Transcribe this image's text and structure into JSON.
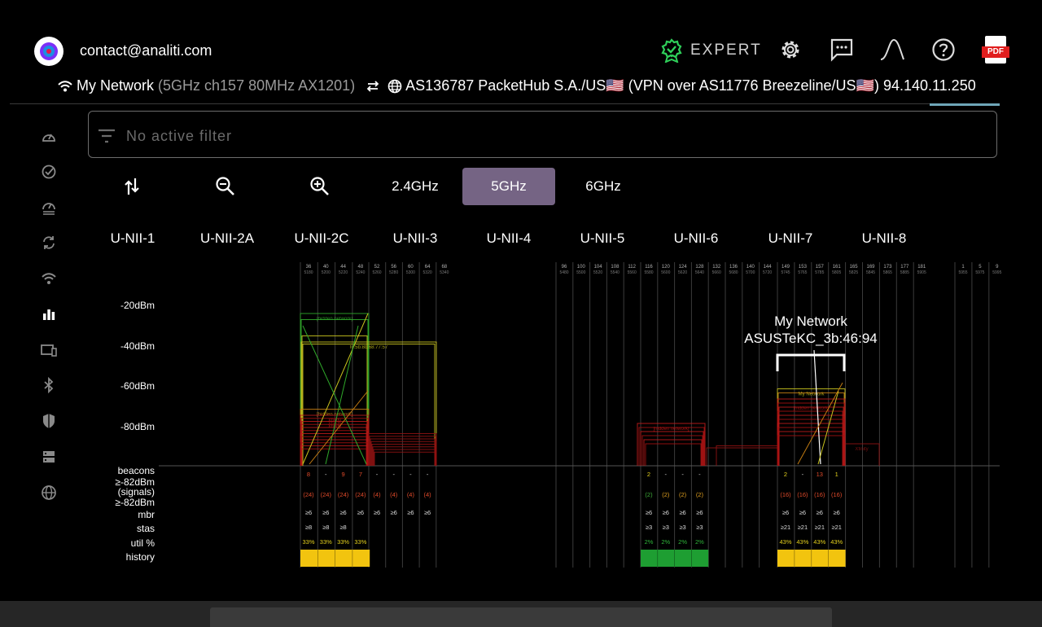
{
  "header": {
    "account_email": "contact@analiti.com",
    "expert_label": "EXPERT",
    "network_name": "My Network",
    "network_details": "(5GHz ch157 80MHz AX1201)",
    "isp_text": "AS136787 PacketHub S.A./US🇺🇸 (VPN over AS11776 Breezeline/US🇺🇸) 94.140.11.250",
    "pdf_label": "PDF"
  },
  "icons": {
    "logo": "app-logo-icon",
    "expert": "award-badge-icon",
    "settings": "gear-icon",
    "feedback": "chat-icon",
    "curve": "bell-curve-icon",
    "help": "help-icon",
    "pdf": "pdf-export-icon"
  },
  "sidebar": {
    "items": [
      {
        "icon": "speedometer-icon"
      },
      {
        "icon": "check-circle-icon"
      },
      {
        "icon": "gauge-stack-icon"
      },
      {
        "icon": "sync-icon"
      },
      {
        "icon": "wifi-icon"
      },
      {
        "icon": "bar-chart-icon",
        "active": true
      },
      {
        "icon": "devices-icon"
      },
      {
        "icon": "bluetooth-icon"
      },
      {
        "icon": "shield-icon"
      },
      {
        "icon": "dns-icon"
      },
      {
        "icon": "globe-icon"
      }
    ]
  },
  "filter": {
    "placeholder": "No active filter"
  },
  "toolbar": {
    "bands": [
      "2.4GHz",
      "5GHz",
      "6GHz"
    ],
    "selected_band": "5GHz"
  },
  "unii_bands": [
    "U-NII-1",
    "U-NII-2A",
    "U-NII-2C",
    "U-NII-3",
    "U-NII-4",
    "U-NII-5",
    "U-NII-6",
    "U-NII-7",
    "U-NII-8"
  ],
  "chart_data": {
    "type": "spectrum",
    "y_ticks": [
      "-20dBm",
      "-40dBm",
      "-60dBm",
      "-80dBm"
    ],
    "row_labels": [
      "beacons",
      "≥-82dBm\n(signals)",
      "≥-82dBm",
      "mbr",
      "stas",
      "util %",
      "history"
    ],
    "channel_groups": [
      {
        "channels": [
          "36",
          "40",
          "44",
          "48"
        ],
        "freqs": [
          "5180",
          "5200",
          "5220",
          "5240"
        ]
      },
      {
        "channels": [
          "52",
          "56",
          "60",
          "64",
          "68"
        ],
        "freqs": [
          "5260",
          "5280",
          "5300",
          "5320",
          "5340"
        ]
      },
      {
        "channels": [
          "96",
          "100",
          "104",
          "108",
          "112",
          "116",
          "120",
          "124",
          "128",
          "132",
          "136",
          "140",
          "144"
        ],
        "freqs": [
          "5480",
          "5500",
          "5520",
          "5540",
          "5560",
          "5580",
          "5600",
          "5620",
          "5640",
          "5660",
          "5680",
          "5700",
          "5720"
        ]
      },
      {
        "channels": [
          "149",
          "153",
          "157",
          "161",
          "165",
          "169",
          "173",
          "177",
          "181"
        ],
        "freqs": [
          "5745",
          "5765",
          "5785",
          "5805",
          "5825",
          "5845",
          "5865",
          "5885",
          "5905"
        ]
      },
      {
        "channels": [
          "1",
          "5",
          "9"
        ],
        "freqs": [
          "5955",
          "5975",
          "5995"
        ]
      }
    ],
    "highlight": {
      "ssid": "My Network",
      "bssid": "ASUSTeKC_3b:46:94"
    },
    "stats": [
      {
        "channels": [
          "36",
          "40",
          "44",
          "48"
        ],
        "beacons": [
          "8",
          "-",
          "9",
          "7"
        ],
        "signals": [
          "(24)",
          "(24)",
          "(24)",
          "(24)"
        ],
        "mbr": [
          "≥6",
          "≥6",
          "≥6",
          "≥6"
        ],
        "stas": [
          "≥8",
          "≥8",
          "≥8",
          ""
        ],
        "util": [
          "33%",
          "33%",
          "33%",
          "33%"
        ],
        "history": "yellow"
      },
      {
        "channels": [
          "52",
          "56",
          "60",
          "64"
        ],
        "beacons": [
          "-",
          "-",
          "-",
          "-"
        ],
        "signals": [
          "(4)",
          "(4)",
          "(4)",
          "(4)"
        ],
        "mbr": [
          "≥6",
          "≥6",
          "≥6",
          "≥6"
        ],
        "stas": [
          "",
          "",
          "",
          ""
        ],
        "util": [
          "",
          "",
          "",
          ""
        ],
        "history": ""
      },
      {
        "channels": [
          "116",
          "120",
          "124",
          "128"
        ],
        "beacons": [
          "2",
          "-",
          "-",
          "-"
        ],
        "signals": [
          "(2)",
          "(2)",
          "(2)",
          "(2)"
        ],
        "mbr": [
          "≥6",
          "≥6",
          "≥6",
          "≥6"
        ],
        "stas": [
          "≥3",
          "≥3",
          "≥3",
          "≥3"
        ],
        "util": [
          "2%",
          "2%",
          "2%",
          "2%"
        ],
        "history": "green"
      },
      {
        "channels": [
          "149",
          "153",
          "157",
          "161"
        ],
        "beacons": [
          "2",
          "-",
          "13",
          "1"
        ],
        "signals": [
          "(16)",
          "(16)",
          "(16)",
          "(16)"
        ],
        "mbr": [
          "≥6",
          "≥6",
          "≥6",
          "≥6"
        ],
        "stas": [
          "≥21",
          "≥21",
          "≥21",
          "≥21"
        ],
        "util": [
          "43%",
          "43%",
          "43%",
          "43%"
        ],
        "history": "yellow"
      }
    ],
    "colors": {
      "strong": "#2fa82a",
      "medium": "#c8c21e",
      "weak": "#c07a12",
      "very_weak": "#a01010",
      "green_history": "#1e9e32",
      "yellow_history": "#f2c40f"
    }
  }
}
